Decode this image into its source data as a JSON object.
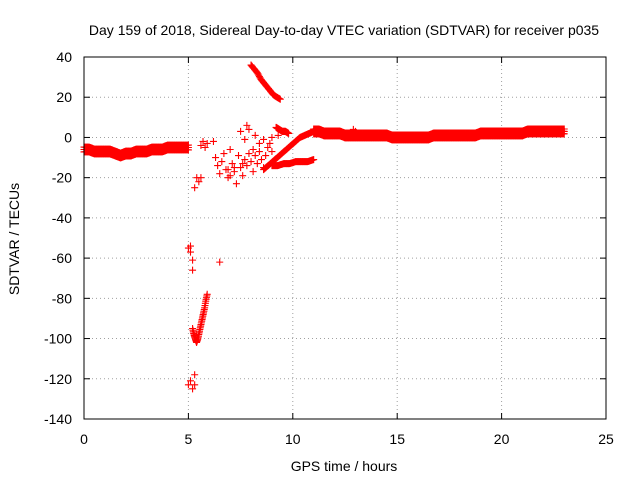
{
  "chart_data": {
    "type": "scatter",
    "title": "Day 159 of 2018, Sidereal Day-to-day VTEC variation (SDTVAR) for receiver p035",
    "xlabel": "GPS time / hours",
    "ylabel": "SDTVAR / TECUs",
    "xlim": [
      0,
      25
    ],
    "ylim": [
      -140,
      40
    ],
    "xticks": [
      0,
      5,
      10,
      15,
      20,
      25
    ],
    "yticks": [
      -140,
      -120,
      -100,
      -80,
      -60,
      -40,
      -20,
      0,
      20,
      40
    ],
    "grid": true,
    "marker": "+",
    "color": "#ff0000",
    "segments": [
      {
        "name": "early-track",
        "x_start": 0.0,
        "x_end": 5.0,
        "y": [
          -6,
          -6,
          -7,
          -7,
          -7,
          -7,
          -8,
          -9,
          -8,
          -8,
          -7,
          -7,
          -7,
          -6,
          -6,
          -6,
          -5,
          -5,
          -5,
          -5,
          -5
        ]
      },
      {
        "name": "late-track",
        "x_start": 11.0,
        "x_end": 23.0,
        "y": [
          3,
          3,
          2,
          2,
          2,
          2,
          1,
          1,
          1,
          1,
          1,
          1,
          1,
          1,
          1,
          0,
          0,
          0,
          0,
          0,
          0,
          0,
          0,
          1,
          1,
          1,
          1,
          1,
          1,
          1,
          1,
          1,
          2,
          2,
          2,
          2,
          2,
          2,
          2,
          2,
          2,
          3,
          3,
          3,
          3,
          3,
          3,
          3,
          3
        ]
      },
      {
        "name": "plunge-track",
        "x_start": 5.2,
        "x_end": 5.9,
        "y": [
          -95,
          -98,
          -100,
          -102,
          -100,
          -97,
          -94,
          -91,
          -88,
          -85,
          -81,
          -78
        ]
      },
      {
        "name": "rising-track-1",
        "x_start": 8.0,
        "x_end": 9.4,
        "y": [
          36,
          34,
          32,
          29,
          27,
          25,
          23,
          21,
          20,
          19
        ]
      },
      {
        "name": "rising-track-2",
        "x_start": 8.6,
        "x_end": 11.0,
        "y": [
          -16,
          -14,
          -12,
          -10,
          -8,
          -6,
          -4,
          -2,
          0,
          1,
          2,
          3
        ]
      },
      {
        "name": "rising-track-3",
        "x_start": 9.0,
        "x_end": 11.0,
        "y": [
          -14,
          -14,
          -13,
          -13,
          -12,
          -12,
          -12,
          -11
        ]
      },
      {
        "name": "rising-track-4",
        "x_start": 9.2,
        "x_end": 9.8,
        "y": [
          5,
          4,
          3,
          3,
          2
        ]
      }
    ],
    "points": [
      [
        5.0,
        -55
      ],
      [
        5.1,
        -54
      ],
      [
        5.1,
        -57
      ],
      [
        5.2,
        -61
      ],
      [
        5.2,
        -66
      ],
      [
        5.0,
        -123
      ],
      [
        5.1,
        -121
      ],
      [
        5.2,
        -125
      ],
      [
        5.3,
        -123
      ],
      [
        5.3,
        -118
      ],
      [
        5.4,
        -20
      ],
      [
        5.5,
        -22
      ],
      [
        5.3,
        -25
      ],
      [
        5.6,
        -20
      ],
      [
        5.6,
        -4
      ],
      [
        5.7,
        -2
      ],
      [
        5.8,
        -5
      ],
      [
        5.9,
        -3
      ],
      [
        6.2,
        -2
      ],
      [
        6.5,
        -62
      ],
      [
        6.3,
        -10
      ],
      [
        6.4,
        -14
      ],
      [
        6.5,
        -18
      ],
      [
        6.6,
        -12
      ],
      [
        6.7,
        -8
      ],
      [
        6.8,
        -16
      ],
      [
        6.9,
        -20
      ],
      [
        7.0,
        -6
      ],
      [
        7.1,
        -13
      ],
      [
        7.2,
        -17
      ],
      [
        7.3,
        -23
      ],
      [
        7.4,
        -9
      ],
      [
        7.5,
        -15
      ],
      [
        7.6,
        -19
      ],
      [
        7.7,
        -11
      ],
      [
        7.8,
        -14
      ],
      [
        7.9,
        -8
      ],
      [
        8.0,
        -12
      ],
      [
        8.1,
        -17
      ],
      [
        8.2,
        -9
      ],
      [
        8.3,
        -13
      ],
      [
        8.4,
        -7
      ],
      [
        8.5,
        -11
      ],
      [
        8.6,
        -15
      ],
      [
        8.7,
        -9
      ],
      [
        8.8,
        -5
      ],
      [
        8.9,
        -3
      ],
      [
        9.0,
        -7
      ],
      [
        7.5,
        3
      ],
      [
        7.7,
        -1
      ],
      [
        7.9,
        4
      ],
      [
        8.2,
        1
      ],
      [
        8.4,
        -3
      ],
      [
        8.6,
        -1
      ],
      [
        9.0,
        0
      ],
      [
        9.3,
        1
      ],
      [
        7.8,
        6
      ],
      [
        12.0,
        3
      ],
      [
        12.9,
        4
      ],
      [
        13.0,
        3
      ],
      [
        6.9,
        -16
      ],
      [
        7.0,
        -19
      ],
      [
        7.2,
        -15
      ],
      [
        7.6,
        -13
      ],
      [
        8.1,
        -6
      ]
    ]
  }
}
